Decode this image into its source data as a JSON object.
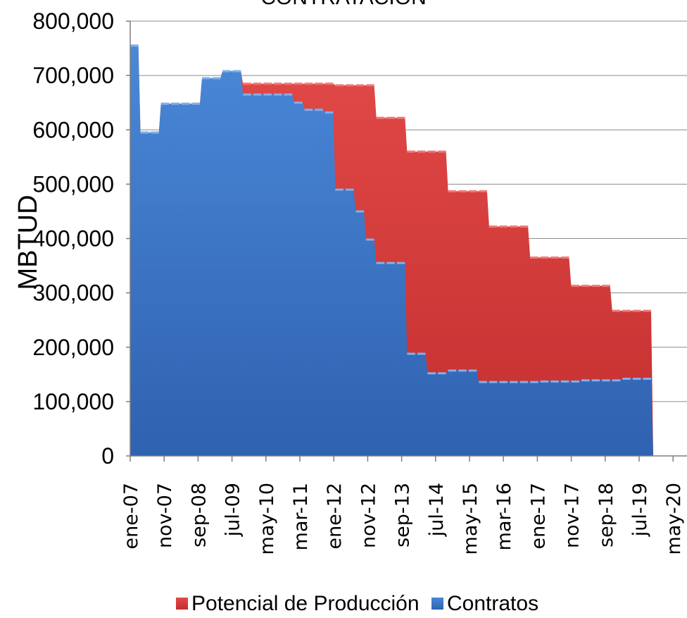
{
  "chart_data": {
    "type": "area",
    "title": "CONTRATACIÓN",
    "xlabel": "",
    "ylabel": "MBTUD",
    "ylim": [
      0,
      800000
    ],
    "yticks": [
      "0",
      "100,000",
      "200,000",
      "300,000",
      "400,000",
      "500,000",
      "600,000",
      "700,000",
      "800,000"
    ],
    "xticks": [
      "ene-07",
      "nov-07",
      "sep-08",
      "jul-09",
      "may-10",
      "mar-11",
      "ene-12",
      "nov-12",
      "sep-13",
      "jul-14",
      "may-15",
      "mar-16",
      "ene-17",
      "nov-17",
      "sep-18",
      "jul-19",
      "may-20"
    ],
    "grid": "horizontal",
    "legend_position": "bottom",
    "x_dates": [
      "ene-07",
      "abr-07",
      "jul-07",
      "oct-07",
      "ene-08",
      "abr-08",
      "jul-08",
      "oct-08",
      "ene-09",
      "abr-09",
      "jul-09",
      "oct-09",
      "ene-10",
      "abr-10",
      "jul-10",
      "oct-10",
      "ene-11",
      "abr-11",
      "jul-11",
      "oct-11",
      "ene-12",
      "abr-12",
      "jul-12",
      "oct-12",
      "ene-13",
      "abr-13",
      "jul-13",
      "oct-13",
      "ene-14",
      "abr-14",
      "jul-14",
      "oct-14",
      "ene-15",
      "abr-15",
      "jul-15",
      "oct-15",
      "ene-16",
      "abr-16",
      "jul-16",
      "oct-16",
      "ene-17",
      "abr-17",
      "jul-17",
      "oct-17",
      "ene-18",
      "abr-18",
      "jul-18",
      "oct-18",
      "ene-19",
      "abr-19",
      "jul-19",
      "oct-19"
    ],
    "series": [
      {
        "name": "Potencial de Producción",
        "color": "#d33a3a",
        "values": [
          755000,
          595000,
          595000,
          648000,
          648000,
          648000,
          648000,
          695000,
          695000,
          708000,
          708000,
          685000,
          685000,
          685000,
          685000,
          685000,
          685000,
          685000,
          685000,
          685000,
          682000,
          682000,
          682000,
          682000,
          622000,
          622000,
          622000,
          560000,
          560000,
          560000,
          560000,
          487000,
          487000,
          487000,
          487000,
          422000,
          422000,
          422000,
          422000,
          365000,
          365000,
          365000,
          365000,
          313000,
          313000,
          313000,
          313000,
          267000,
          267000,
          267000,
          267000,
          0
        ]
      },
      {
        "name": "Contratos",
        "color": "#3c78cc",
        "values": [
          755000,
          595000,
          595000,
          648000,
          648000,
          648000,
          648000,
          695000,
          695000,
          708000,
          708000,
          665000,
          665000,
          665000,
          665000,
          665000,
          650000,
          637000,
          637000,
          632000,
          490000,
          490000,
          450000,
          398000,
          355000,
          355000,
          355000,
          188000,
          188000,
          152000,
          152000,
          157000,
          157000,
          157000,
          136000,
          136000,
          136000,
          136000,
          136000,
          136000,
          137000,
          137000,
          137000,
          137000,
          139000,
          139000,
          139000,
          139000,
          142000,
          142000,
          142000,
          0
        ]
      }
    ]
  }
}
